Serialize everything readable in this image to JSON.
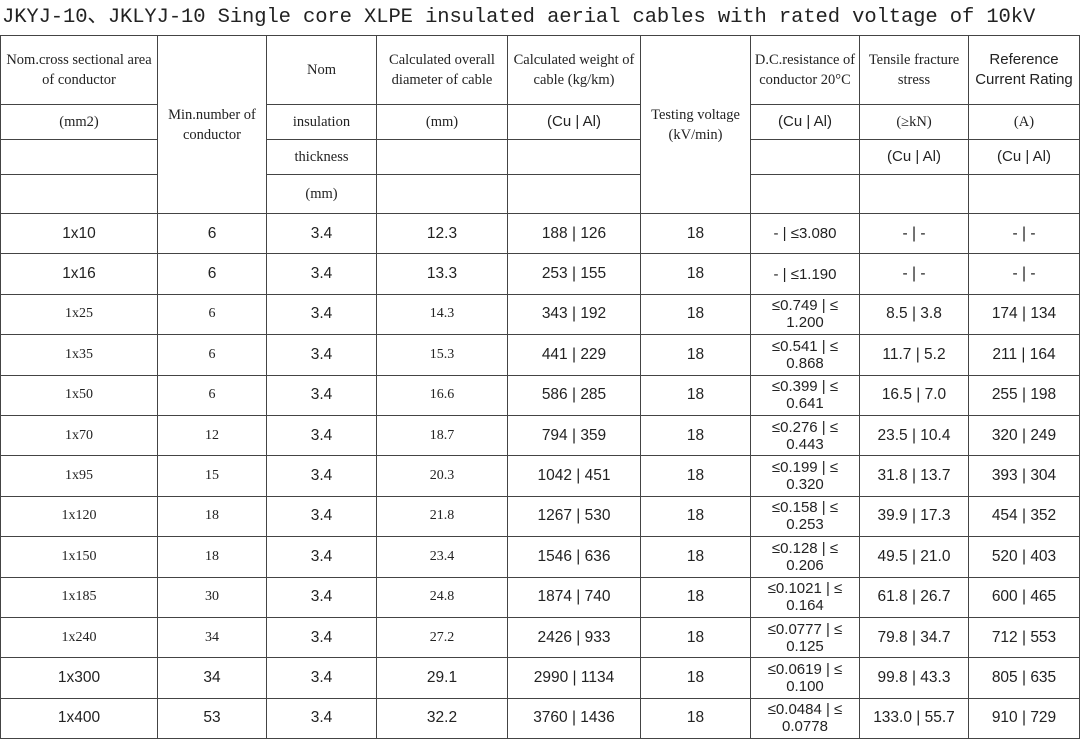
{
  "header": {
    "title": "JKYJ-10、JKLYJ-10 Single core XLPE insulated aerial cables with rated voltage of 10kV"
  },
  "table": {
    "head": [
      [
        "Nom.cross sectional area of conductor",
        "Min.number of conductor",
        "Nom",
        "Calculated overall diameter of cable",
        "Calculated weight of cable (kg/km)",
        "Testing voltage (kV/min)",
        "D.C.resistance of conductor 20°C",
        "Tensile fracture stress",
        "Reference Current Rating"
      ],
      [
        "(mm2)",
        "insulation",
        "(mm)",
        "(Cu | Al)",
        "(Cu | Al)",
        "(≥kN)",
        "(A)"
      ],
      [
        "thickness",
        "(Cu | Al)",
        "(Cu | Al)"
      ],
      [
        "(mm)"
      ]
    ],
    "rows": [
      [
        "1x10",
        "6",
        "3.4",
        "12.3",
        "188 | 126",
        "18",
        "- | ≤3.080",
        "- | -",
        "- | -"
      ],
      [
        "1x16",
        "6",
        "3.4",
        "13.3",
        "253 | 155",
        "18",
        "- | ≤1.190",
        "- | -",
        "- | -"
      ],
      [
        "1x25",
        "6",
        "3.4",
        "14.3",
        "343 | 192",
        "18",
        "≤0.749 | ≤ 1.200",
        "8.5 | 3.8",
        "174 | 134"
      ],
      [
        "1x35",
        "6",
        "3.4",
        "15.3",
        "441 | 229",
        "18",
        "≤0.541 | ≤ 0.868",
        "11.7 | 5.2",
        "211 | 164"
      ],
      [
        "1x50",
        "6",
        "3.4",
        "16.6",
        "586 | 285",
        "18",
        "≤0.399 | ≤ 0.641",
        "16.5 | 7.0",
        "255 | 198"
      ],
      [
        "1x70",
        "12",
        "3.4",
        "18.7",
        "794 | 359",
        "18",
        "≤0.276 | ≤ 0.443",
        "23.5 | 10.4",
        "320 | 249"
      ],
      [
        "1x95",
        "15",
        "3.4",
        "20.3",
        "1042 | 451",
        "18",
        "≤0.199 | ≤ 0.320",
        "31.8 | 13.7",
        "393 | 304"
      ],
      [
        "1x120",
        "18",
        "3.4",
        "21.8",
        "1267 | 530",
        "18",
        "≤0.158 | ≤ 0.253",
        "39.9 | 17.3",
        "454 | 352"
      ],
      [
        "1x150",
        "18",
        "3.4",
        "23.4",
        "1546 | 636",
        "18",
        "≤0.128 | ≤ 0.206",
        "49.5 | 21.0",
        "520 | 403"
      ],
      [
        "1x185",
        "30",
        "3.4",
        "24.8",
        "1874 | 740",
        "18",
        "≤0.1021 | ≤ 0.164",
        "61.8 | 26.7",
        "600 | 465"
      ],
      [
        "1x240",
        "34",
        "3.4",
        "27.2",
        "2426 | 933",
        "18",
        "≤0.0777 | ≤ 0.125",
        "79.8 | 34.7",
        "712 | 553"
      ],
      [
        "1x300",
        "34",
        "3.4",
        "29.1",
        "2990 | 1134",
        "18",
        "≤0.0619 | ≤ 0.100",
        "99.8 | 43.3",
        "805 | 635"
      ],
      [
        "1x400",
        "53",
        "3.4",
        "32.2",
        "3760 | 1436",
        "18",
        "≤0.0484 | ≤ 0.0778",
        "133.0 | 55.7",
        "910 | 729"
      ]
    ]
  }
}
